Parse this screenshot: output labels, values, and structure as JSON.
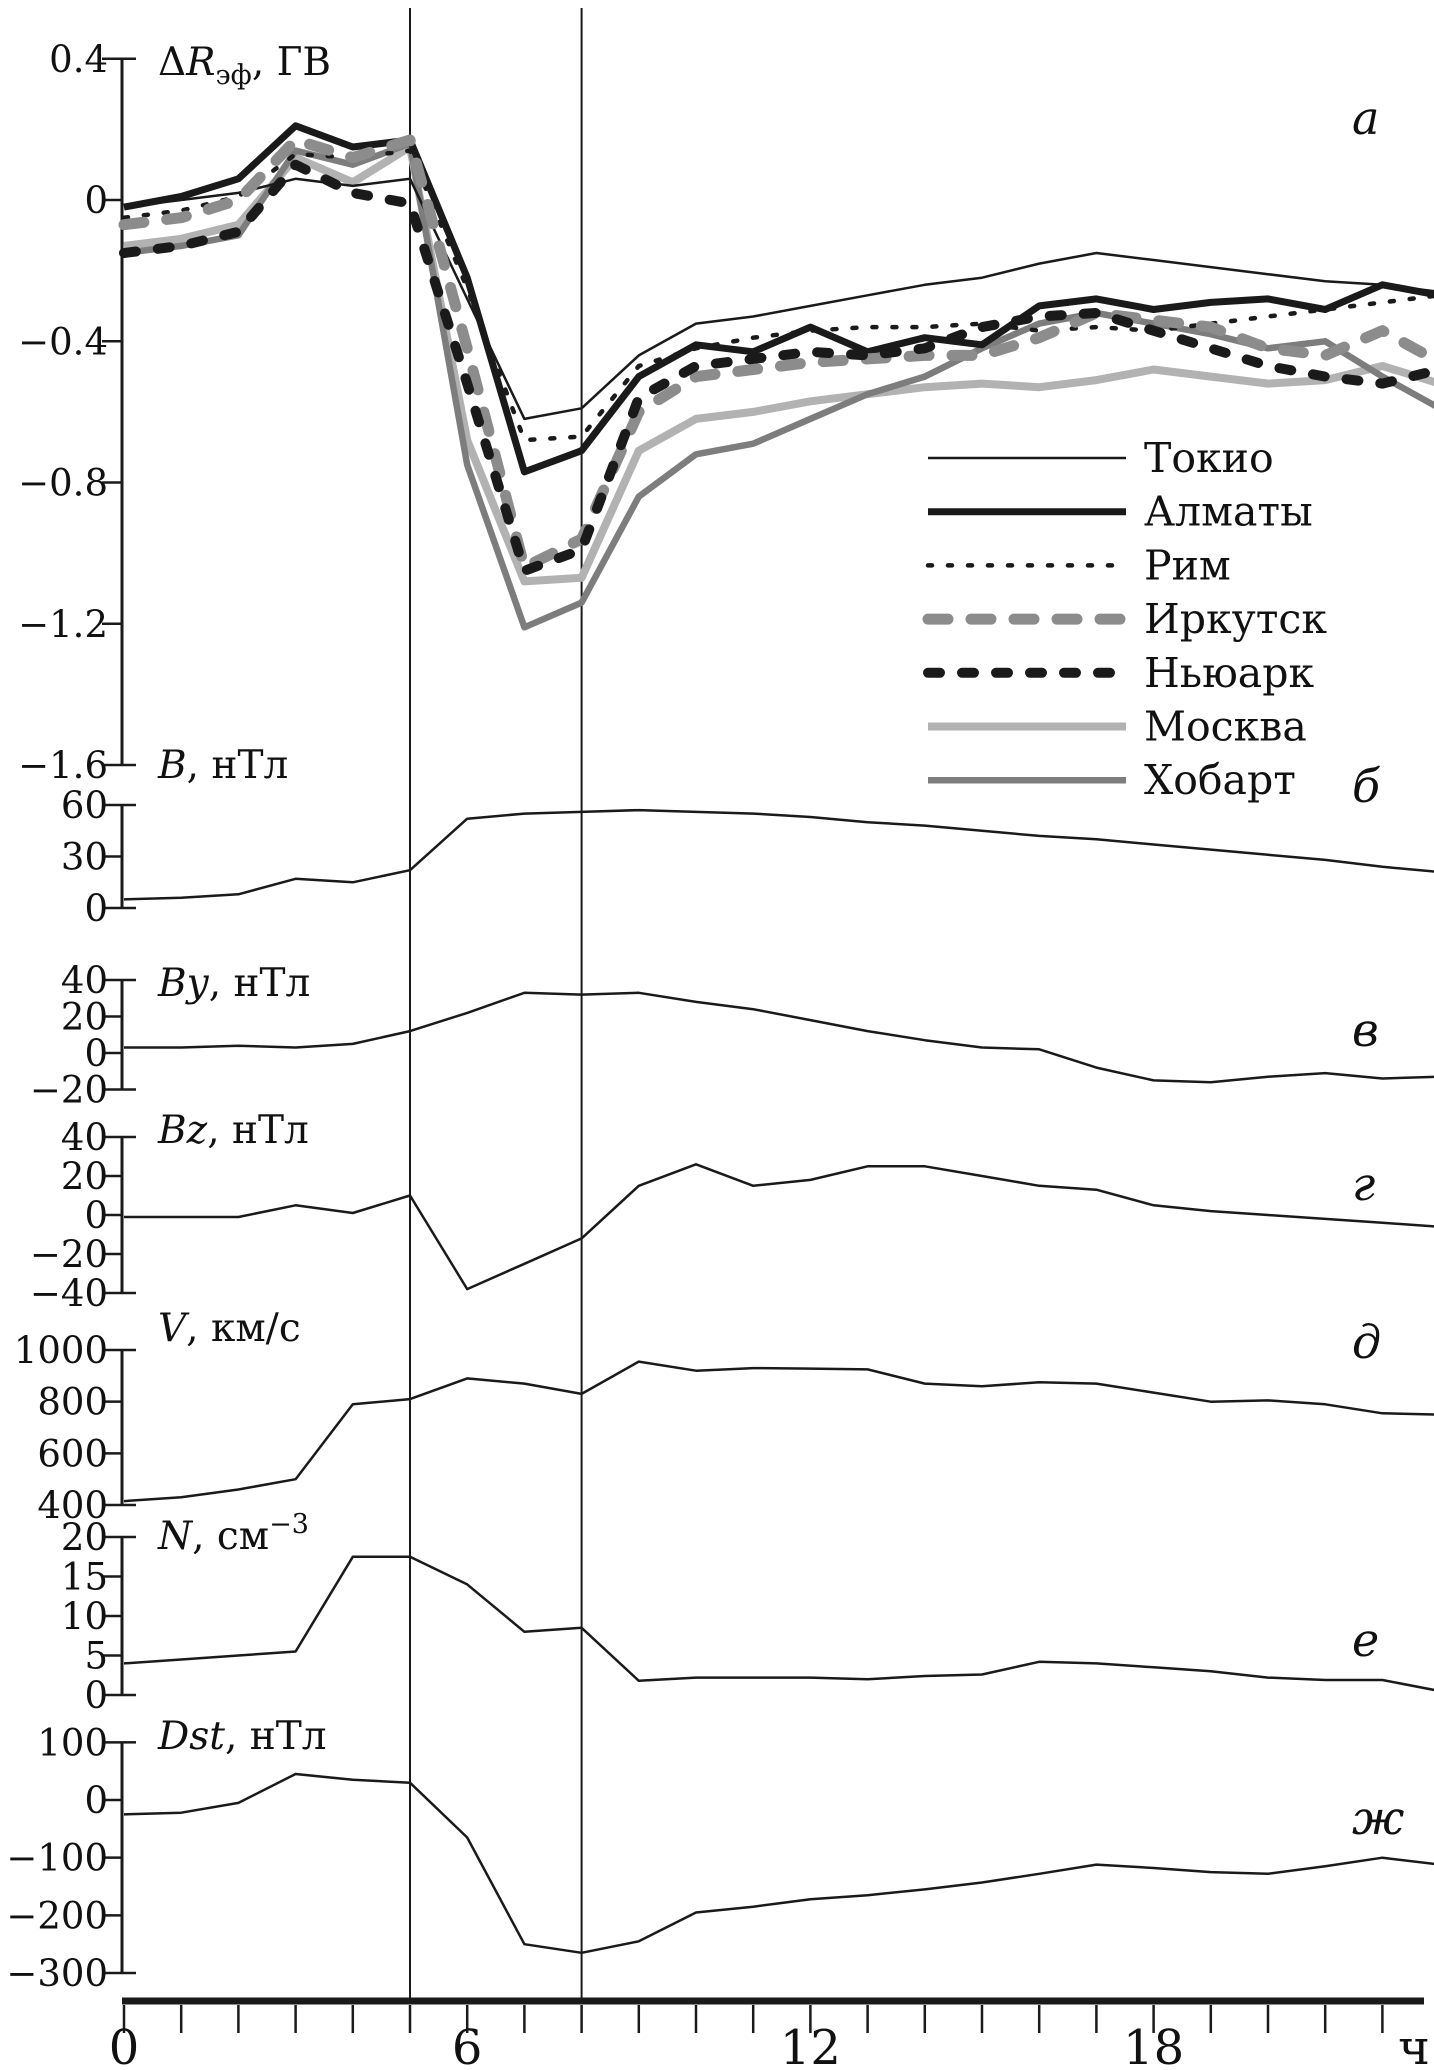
{
  "x_axis": {
    "major_ticks": [
      "0",
      "6",
      "12",
      "18"
    ],
    "major_values": [
      0,
      6,
      12,
      18
    ],
    "unit": "ч",
    "minor_step_h": 1,
    "range_h": [
      0,
      23
    ]
  },
  "event_lines_h": [
    5,
    8
  ],
  "legend_position": "inside-right-panel-a",
  "colors": {
    "black": "#1a1a1a",
    "gray_irkutsk": "#8c8c8c",
    "gray_moscow": "#b2b2b2",
    "gray_hobart": "#7d7d7d"
  },
  "chart_data": [
    {
      "id": "a",
      "type": "line",
      "panel_letter": "а",
      "title": {
        "prefix": "Δ",
        "var": "R",
        "sub": "эф",
        "unit": ", ГВ"
      },
      "ylim": [
        -1.6,
        0.4
      ],
      "grid": false,
      "yticks": [
        {
          "v": 0.4,
          "label": "0.4"
        },
        {
          "v": 0,
          "label": "0"
        },
        {
          "v": -0.4,
          "label": "−0.4"
        },
        {
          "v": -0.8,
          "label": "−0.8"
        },
        {
          "v": -1.2,
          "label": "−1.2"
        },
        {
          "v": -1.6,
          "label": "−1.6"
        }
      ],
      "x_hours": [
        0,
        1,
        2,
        3,
        4,
        5,
        6,
        7,
        8,
        9,
        10,
        11,
        12,
        13,
        14,
        15,
        16,
        17,
        18,
        19,
        20,
        21,
        22,
        23
      ],
      "series": [
        {
          "name": "Токио",
          "color": "#1a1a1a",
          "width": 2.5,
          "dash": null,
          "values": [
            -0.02,
            0.0,
            0.02,
            0.06,
            0.04,
            0.06,
            -0.28,
            -0.62,
            -0.59,
            -0.44,
            -0.35,
            -0.33,
            -0.3,
            -0.27,
            -0.24,
            -0.22,
            -0.18,
            -0.15,
            -0.17,
            -0.19,
            -0.21,
            -0.23,
            -0.24,
            -0.26
          ]
        },
        {
          "name": "Алматы",
          "color": "#1a1a1a",
          "width": 7,
          "dash": null,
          "values": [
            -0.02,
            0.01,
            0.06,
            0.21,
            0.15,
            0.17,
            -0.22,
            -0.77,
            -0.71,
            -0.5,
            -0.41,
            -0.43,
            -0.36,
            -0.43,
            -0.39,
            -0.41,
            -0.3,
            -0.28,
            -0.31,
            -0.29,
            -0.28,
            -0.31,
            -0.24,
            -0.27
          ]
        },
        {
          "name": "Рим",
          "color": "#1a1a1a",
          "width": 4.5,
          "dash": "4 16",
          "values": [
            -0.05,
            -0.03,
            0.01,
            0.13,
            0.12,
            0.14,
            -0.25,
            -0.68,
            -0.67,
            -0.47,
            -0.42,
            -0.39,
            -0.37,
            -0.36,
            -0.36,
            -0.35,
            -0.37,
            -0.36,
            -0.37,
            -0.35,
            -0.33,
            -0.31,
            -0.29,
            -0.27
          ]
        },
        {
          "name": "Иркутск",
          "color": "#8c8c8c",
          "width": 11,
          "dash": "20 23",
          "values": [
            -0.07,
            -0.05,
            0.0,
            0.17,
            0.12,
            0.17,
            -0.42,
            -1.04,
            -0.96,
            -0.6,
            -0.5,
            -0.48,
            -0.46,
            -0.45,
            -0.44,
            -0.44,
            -0.39,
            -0.32,
            -0.34,
            -0.36,
            -0.42,
            -0.44,
            -0.37,
            -0.46
          ]
        },
        {
          "name": "Ньюарк",
          "color": "#1a1a1a",
          "width": 10,
          "dash": "12 22",
          "values": [
            -0.15,
            -0.13,
            -0.09,
            0.1,
            0.02,
            -0.01,
            -0.52,
            -1.05,
            -0.99,
            -0.56,
            -0.47,
            -0.45,
            -0.43,
            -0.44,
            -0.42,
            -0.36,
            -0.33,
            -0.32,
            -0.37,
            -0.42,
            -0.47,
            -0.5,
            -0.52,
            -0.48
          ]
        },
        {
          "name": "Москва",
          "color": "#b2b2b2",
          "width": 8,
          "dash": null,
          "values": [
            -0.13,
            -0.11,
            -0.07,
            0.12,
            0.05,
            0.15,
            -0.68,
            -1.08,
            -1.07,
            -0.71,
            -0.62,
            -0.6,
            -0.57,
            -0.55,
            -0.53,
            -0.52,
            -0.53,
            -0.51,
            -0.48,
            -0.5,
            -0.52,
            -0.51,
            -0.47,
            -0.52
          ]
        },
        {
          "name": "Хобарт",
          "color": "#7d7d7d",
          "width": 6.5,
          "dash": null,
          "values": [
            -0.15,
            -0.13,
            -0.1,
            0.14,
            0.1,
            0.16,
            -0.75,
            -1.21,
            -1.14,
            -0.84,
            -0.72,
            -0.69,
            -0.62,
            -0.55,
            -0.5,
            -0.42,
            -0.35,
            -0.32,
            -0.35,
            -0.38,
            -0.42,
            -0.4,
            -0.5,
            -0.59
          ]
        }
      ]
    },
    {
      "id": "b",
      "type": "line",
      "panel_letter": "б",
      "title": {
        "var": "B",
        "unit": ", нТл"
      },
      "ylim": [
        0,
        60
      ],
      "grid": false,
      "yticks": [
        {
          "v": 60,
          "label": "60"
        },
        {
          "v": 30,
          "label": "30"
        },
        {
          "v": 0,
          "label": "0"
        }
      ],
      "x_hours": [
        0,
        1,
        2,
        3,
        4,
        5,
        6,
        7,
        8,
        9,
        10,
        11,
        12,
        13,
        14,
        15,
        16,
        17,
        18,
        19,
        20,
        21,
        22,
        23
      ],
      "series": [
        {
          "name": "B",
          "color": "#1a1a1a",
          "width": 2.5,
          "dash": null,
          "values": [
            5,
            6,
            8,
            17,
            15,
            22,
            52,
            55,
            56,
            57,
            56,
            55,
            53,
            50,
            48,
            45,
            42,
            40,
            37,
            34,
            31,
            28,
            24,
            21
          ]
        }
      ]
    },
    {
      "id": "v",
      "type": "line",
      "panel_letter": "в",
      "title": {
        "var": "By",
        "unit": ", нТл"
      },
      "ylim": [
        -20,
        40
      ],
      "grid": false,
      "yticks": [
        {
          "v": 40,
          "label": "40"
        },
        {
          "v": 20,
          "label": "20"
        },
        {
          "v": 0,
          "label": "0"
        },
        {
          "v": -20,
          "label": "−20"
        }
      ],
      "x_hours": [
        0,
        1,
        2,
        3,
        4,
        5,
        6,
        7,
        8,
        9,
        10,
        11,
        12,
        13,
        14,
        15,
        16,
        17,
        18,
        19,
        20,
        21,
        22,
        23
      ],
      "series": [
        {
          "name": "By",
          "color": "#1a1a1a",
          "width": 2.5,
          "dash": null,
          "values": [
            3,
            3,
            4,
            3,
            5,
            12,
            22,
            33,
            32,
            33,
            28,
            24,
            18,
            12,
            7,
            3,
            2,
            -8,
            -15,
            -16,
            -13,
            -11,
            -14,
            -13
          ]
        }
      ]
    },
    {
      "id": "g",
      "type": "line",
      "panel_letter": "г",
      "title": {
        "var": "Bz",
        "unit": ", нТл"
      },
      "ylim": [
        -40,
        40
      ],
      "grid": false,
      "yticks": [
        {
          "v": 40,
          "label": "40"
        },
        {
          "v": 20,
          "label": "20"
        },
        {
          "v": 0,
          "label": "0"
        },
        {
          "v": -20,
          "label": "−20"
        },
        {
          "v": -40,
          "label": "−40"
        }
      ],
      "x_hours": [
        0,
        1,
        2,
        3,
        4,
        5,
        6,
        7,
        8,
        9,
        10,
        11,
        12,
        13,
        14,
        15,
        16,
        17,
        18,
        19,
        20,
        21,
        22,
        23
      ],
      "series": [
        {
          "name": "Bz",
          "color": "#1a1a1a",
          "width": 2.5,
          "dash": null,
          "values": [
            -1,
            -1,
            -1,
            5,
            1,
            10,
            -38,
            -25,
            -12,
            15,
            26,
            15,
            18,
            25,
            25,
            20,
            15,
            13,
            5,
            2,
            0,
            -2,
            -4,
            -6
          ]
        }
      ]
    },
    {
      "id": "d",
      "type": "line",
      "panel_letter": "д",
      "title": {
        "var": "V",
        "unit": ", км/с"
      },
      "ylim": [
        400,
        1000
      ],
      "grid": false,
      "yticks": [
        {
          "v": 1000,
          "label": "1000"
        },
        {
          "v": 800,
          "label": "800"
        },
        {
          "v": 600,
          "label": "600"
        },
        {
          "v": 400,
          "label": "400"
        }
      ],
      "x_hours": [
        0,
        1,
        2,
        3,
        4,
        5,
        6,
        7,
        8,
        9,
        10,
        11,
        12,
        13,
        14,
        15,
        16,
        17,
        18,
        19,
        20,
        21,
        22,
        23
      ],
      "series": [
        {
          "name": "V",
          "color": "#1a1a1a",
          "width": 2.5,
          "dash": null,
          "values": [
            415,
            430,
            460,
            500,
            790,
            810,
            890,
            870,
            830,
            955,
            920,
            930,
            928,
            925,
            870,
            860,
            875,
            870,
            835,
            800,
            805,
            790,
            755,
            750
          ]
        }
      ]
    },
    {
      "id": "e",
      "type": "line",
      "panel_letter": "е",
      "title": {
        "var": "N",
        "unit": ", см",
        "sup": "−3"
      },
      "ylim": [
        0,
        20
      ],
      "grid": false,
      "yticks": [
        {
          "v": 20,
          "label": "20"
        },
        {
          "v": 15,
          "label": "15"
        },
        {
          "v": 10,
          "label": "10"
        },
        {
          "v": 5,
          "label": "5"
        },
        {
          "v": 0,
          "label": "0"
        }
      ],
      "x_hours": [
        0,
        1,
        2,
        3,
        4,
        5,
        6,
        7,
        8,
        9,
        10,
        11,
        12,
        13,
        14,
        15,
        16,
        17,
        18,
        19,
        20,
        21,
        22,
        23
      ],
      "series": [
        {
          "name": "N",
          "color": "#1a1a1a",
          "width": 2.5,
          "dash": null,
          "values": [
            4,
            4.5,
            5,
            5.5,
            17.5,
            17.5,
            14,
            8,
            8.5,
            1.8,
            2.2,
            2.2,
            2.2,
            2.0,
            2.4,
            2.6,
            4.2,
            4.0,
            3.5,
            3.0,
            2.2,
            1.9,
            1.9,
            0.5
          ]
        }
      ]
    },
    {
      "id": "zh",
      "type": "line",
      "panel_letter": "ж",
      "title": {
        "var": "Dst",
        "unit": ", нТл"
      },
      "ylim": [
        -300,
        100
      ],
      "grid": false,
      "yticks": [
        {
          "v": 100,
          "label": "100"
        },
        {
          "v": 0,
          "label": "0"
        },
        {
          "v": -100,
          "label": "−100"
        },
        {
          "v": -200,
          "label": "−200"
        },
        {
          "v": -300,
          "label": "−300"
        }
      ],
      "x_hours": [
        0,
        1,
        2,
        3,
        4,
        5,
        6,
        7,
        8,
        9,
        10,
        11,
        12,
        13,
        14,
        15,
        16,
        17,
        18,
        19,
        20,
        21,
        22,
        23
      ],
      "series": [
        {
          "name": "Dst",
          "color": "#1a1a1a",
          "width": 2.5,
          "dash": null,
          "values": [
            -25,
            -22,
            -5,
            45,
            35,
            30,
            -65,
            -250,
            -265,
            -245,
            -195,
            -185,
            -172,
            -165,
            -155,
            -143,
            -128,
            -112,
            -118,
            -125,
            -128,
            -115,
            -100,
            -112
          ]
        }
      ]
    }
  ]
}
